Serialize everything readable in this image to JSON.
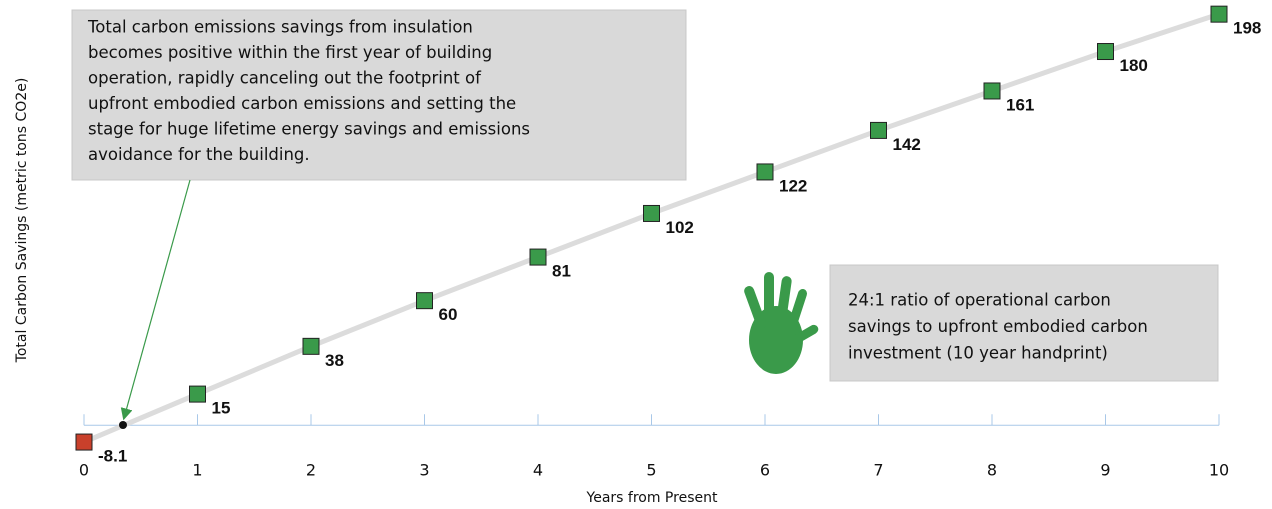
{
  "chart_data": {
    "type": "line",
    "y_label": "Total Carbon Savings (metric tons CO2e)",
    "x_label": "Years from Present",
    "categories": [
      "0",
      "1",
      "2",
      "3",
      "4",
      "5",
      "6",
      "7",
      "8",
      "9",
      "10"
    ],
    "values": [
      -8.1,
      15,
      38,
      60,
      81,
      102,
      122,
      142,
      161,
      180,
      198
    ],
    "point_colors": [
      "#c9402b",
      "#3a9a4a",
      "#3a9a4a",
      "#3a9a4a",
      "#3a9a4a",
      "#3a9a4a",
      "#3a9a4a",
      "#3a9a4a",
      "#3a9a4a",
      "#3a9a4a",
      "#3a9a4a"
    ],
    "line_color": "#dcdcdc",
    "ylim": [
      -10,
      200
    ],
    "annotations": [
      {
        "lines": [
          "Total carbon emissions savings from insulation",
          "becomes positive within the first year of building",
          "operation, rapidly canceling out the footprint of",
          "upfront embodied carbon emissions and setting the",
          "stage for huge lifetime energy savings and emissions",
          "avoidance for the building."
        ]
      },
      {
        "lines": [
          "24:1 ratio of operational carbon",
          "savings to upfront embodied carbon",
          "investment (10 year handprint)"
        ]
      }
    ]
  }
}
